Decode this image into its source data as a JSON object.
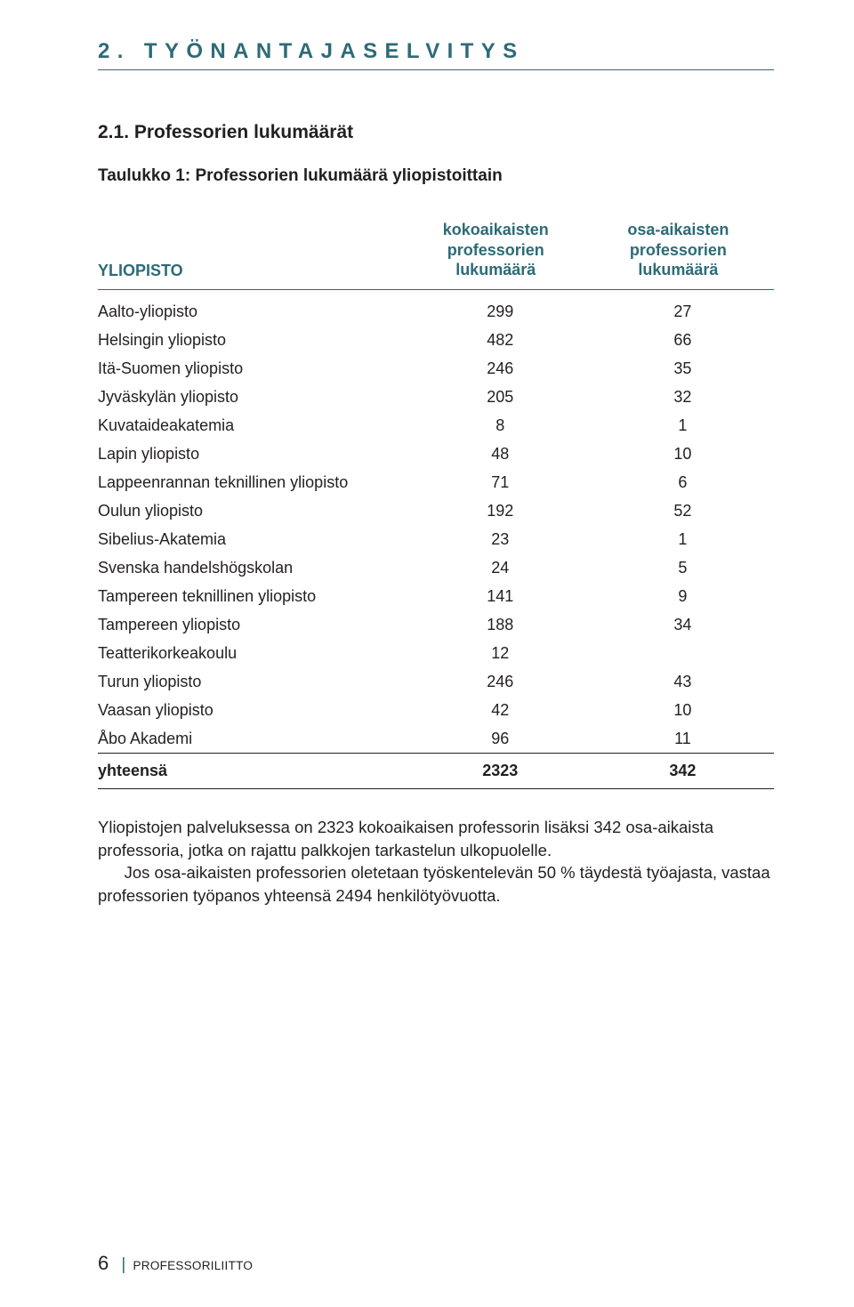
{
  "colors": {
    "accent": "#2d6b77",
    "text": "#231f20",
    "rule": "#2d6b77"
  },
  "section": {
    "title": "2. TYÖNANTAJASELVITYS"
  },
  "sub": {
    "title": "2.1. Professorien lukumäärät"
  },
  "table": {
    "caption": "Taulukko 1: Professorien lukumäärä yliopistoittain",
    "header": {
      "col0": "YLIOPISTO",
      "col1a": "kokoaikaisten",
      "col1b": "professorien lukumäärä",
      "col2a": "osa-aikaisten",
      "col2b": "professorien lukumäärä"
    },
    "header_color": "#2d6b77",
    "rows": [
      {
        "name": "Aalto-yliopisto",
        "v1": "299",
        "v2": "27"
      },
      {
        "name": "Helsingin yliopisto",
        "v1": "482",
        "v2": "66"
      },
      {
        "name": "Itä-Suomen yliopisto",
        "v1": "246",
        "v2": "35"
      },
      {
        "name": "Jyväskylän yliopisto",
        "v1": "205",
        "v2": "32"
      },
      {
        "name": "Kuvataideakatemia",
        "v1": "8",
        "v2": "1"
      },
      {
        "name": "Lapin yliopisto",
        "v1": "48",
        "v2": "10"
      },
      {
        "name": "Lappeenrannan teknillinen yliopisto",
        "v1": "71",
        "v2": "6"
      },
      {
        "name": "Oulun yliopisto",
        "v1": "192",
        "v2": "52"
      },
      {
        "name": "Sibelius-Akatemia",
        "v1": "23",
        "v2": "1"
      },
      {
        "name": "Svenska handelshögskolan",
        "v1": "24",
        "v2": "5"
      },
      {
        "name": "Tampereen teknillinen yliopisto",
        "v1": "141",
        "v2": "9"
      },
      {
        "name": "Tampereen yliopisto",
        "v1": "188",
        "v2": "34"
      },
      {
        "name": "Teatterikorkeakoulu",
        "v1": "12",
        "v2": ""
      },
      {
        "name": "Turun yliopisto",
        "v1": "246",
        "v2": "43"
      },
      {
        "name": "Vaasan yliopisto",
        "v1": "42",
        "v2": "10"
      },
      {
        "name": "Åbo Akademi",
        "v1": "96",
        "v2": "11"
      }
    ],
    "total": {
      "name": "yhteensä",
      "v1": "2323",
      "v2": "342"
    }
  },
  "body": {
    "p1": "Yliopistojen palveluksessa on 2323 kokoaikaisen professorin lisäksi 342 osa-aikaista professoria, jotka on rajattu palkkojen tarkastelun ulkopuolelle.",
    "p2": "Jos osa-aikaisten professorien oletetaan työskentelevän 50 % täydestä työajasta, vastaa professorien työpanos yhteensä 2494 henkilötyövuotta."
  },
  "footer": {
    "page": "6",
    "sep": "|",
    "org": "PROFESSORILIITTO"
  }
}
